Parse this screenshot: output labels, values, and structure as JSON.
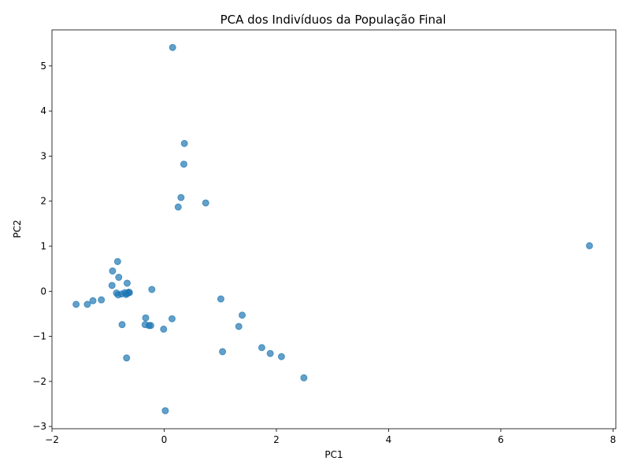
{
  "chart_data": {
    "type": "scatter",
    "title": "PCA dos Indivíduos da População Final",
    "xlabel": "PC1",
    "ylabel": "PC2",
    "xlim": [
      -2.0,
      8.05
    ],
    "ylim": [
      -3.05,
      5.8
    ],
    "xticks": [
      -2,
      0,
      2,
      4,
      6,
      8
    ],
    "yticks": [
      -3,
      -2,
      -1,
      0,
      1,
      2,
      3,
      4,
      5
    ],
    "grid": false,
    "marker_color": "#1f77b4",
    "marker_alpha": 0.7,
    "points": [
      [
        0.15,
        5.41
      ],
      [
        0.36,
        3.28
      ],
      [
        0.35,
        2.82
      ],
      [
        0.3,
        2.08
      ],
      [
        0.25,
        1.87
      ],
      [
        0.74,
        1.96
      ],
      [
        7.58,
        1.01
      ],
      [
        -0.83,
        0.66
      ],
      [
        -0.92,
        0.45
      ],
      [
        -0.81,
        0.31
      ],
      [
        -0.93,
        0.13
      ],
      [
        -0.66,
        0.18
      ],
      [
        -0.22,
        0.04
      ],
      [
        -0.85,
        -0.04
      ],
      [
        -0.82,
        -0.08
      ],
      [
        -0.76,
        -0.06
      ],
      [
        -0.7,
        -0.03
      ],
      [
        -0.66,
        -0.05
      ],
      [
        -0.63,
        -0.02
      ],
      [
        -0.62,
        -0.03
      ],
      [
        -0.68,
        -0.07
      ],
      [
        -1.12,
        -0.19
      ],
      [
        -1.27,
        -0.21
      ],
      [
        -1.37,
        -0.29
      ],
      [
        -1.57,
        -0.29
      ],
      [
        -0.75,
        -0.74
      ],
      [
        -0.33,
        -0.59
      ],
      [
        -0.34,
        -0.74
      ],
      [
        -0.27,
        -0.76
      ],
      [
        -0.24,
        -0.76
      ],
      [
        0.14,
        -0.61
      ],
      [
        -0.01,
        -0.84
      ],
      [
        -0.67,
        -1.48
      ],
      [
        0.02,
        -2.65
      ],
      [
        1.01,
        -0.17
      ],
      [
        1.39,
        -0.53
      ],
      [
        1.33,
        -0.78
      ],
      [
        1.04,
        -1.34
      ],
      [
        1.74,
        -1.25
      ],
      [
        1.89,
        -1.38
      ],
      [
        2.09,
        -1.45
      ],
      [
        2.49,
        -1.92
      ]
    ]
  }
}
